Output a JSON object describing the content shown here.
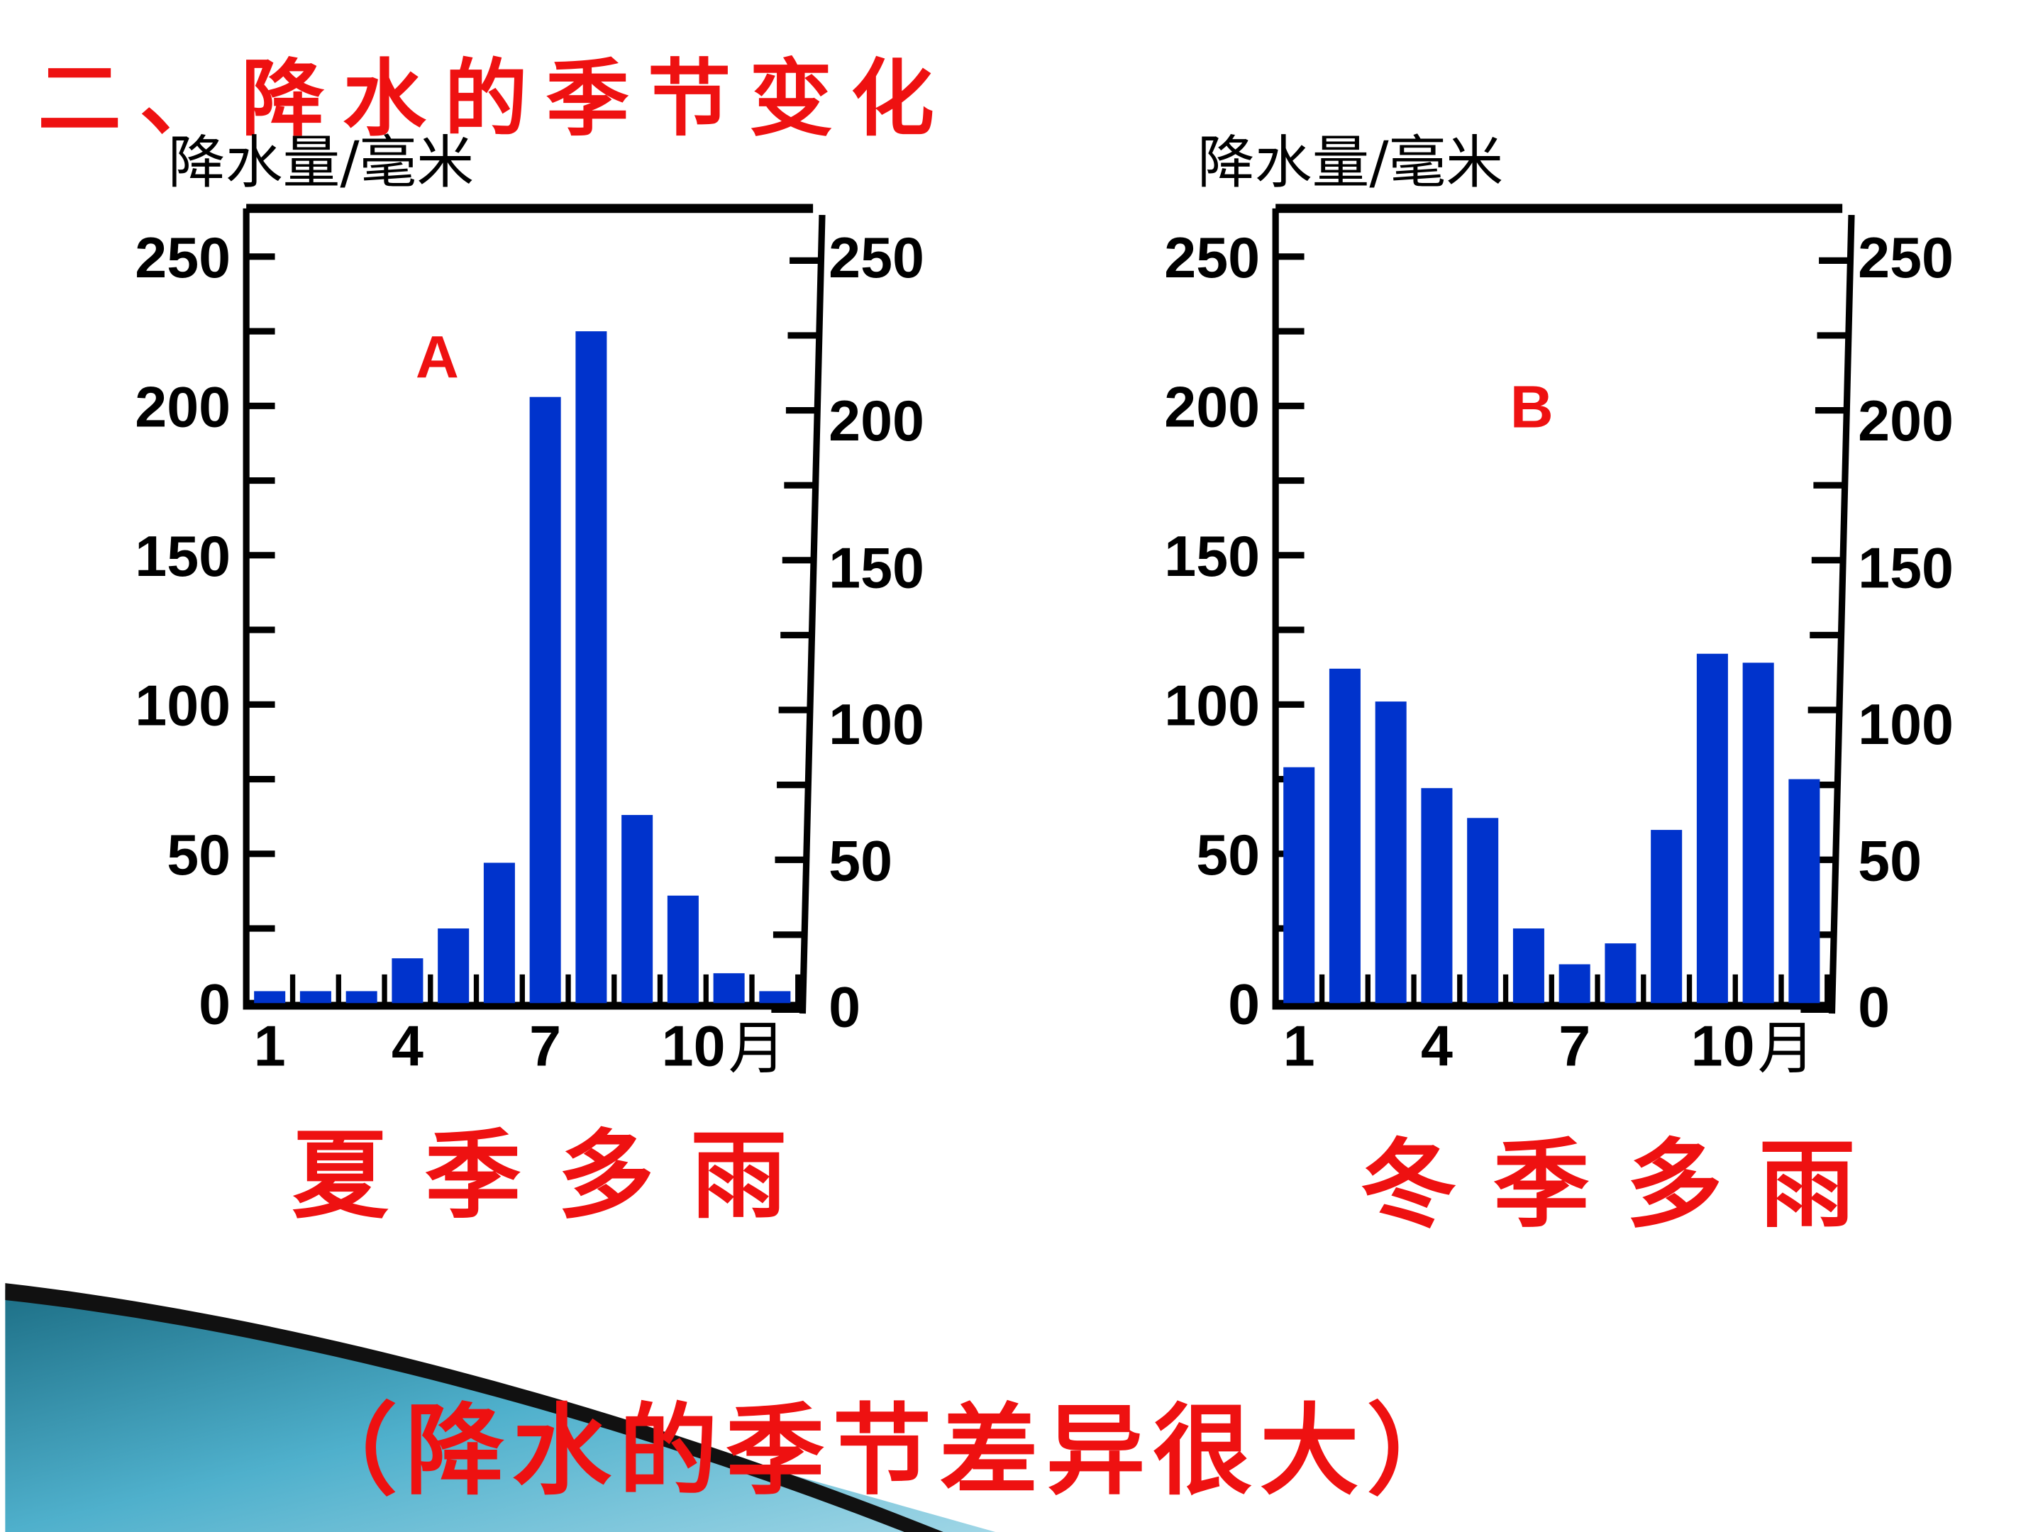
{
  "title": "二、降水的季节变化",
  "subtitle_bottom": "（降水的季节差异很大）",
  "colors": {
    "bar": "#0033cc",
    "accent_text": "#ee1111",
    "axis": "#000000"
  },
  "chart_data": [
    {
      "type": "bar",
      "label": "A",
      "ylabel": "降水量/毫米",
      "xlabel": "月",
      "x_ticks": [
        "1",
        "4",
        "7",
        "10"
      ],
      "y_ticks": [
        "0",
        "50",
        "100",
        "150",
        "200",
        "250"
      ],
      "ylim": [
        0,
        250
      ],
      "categories": [
        1,
        2,
        3,
        4,
        5,
        6,
        7,
        8,
        9,
        10,
        11,
        12
      ],
      "values": [
        4,
        4,
        4,
        15,
        25,
        47,
        203,
        225,
        63,
        36,
        10,
        4
      ],
      "caption": "夏季多雨"
    },
    {
      "type": "bar",
      "label": "B",
      "ylabel": "降水量/毫米",
      "xlabel": "月",
      "x_ticks": [
        "1",
        "4",
        "7",
        "10"
      ],
      "y_ticks": [
        "0",
        "50",
        "100",
        "150",
        "200",
        "250"
      ],
      "ylim": [
        0,
        250
      ],
      "categories": [
        1,
        2,
        3,
        4,
        5,
        6,
        7,
        8,
        9,
        10,
        11,
        12
      ],
      "values": [
        79,
        112,
        101,
        72,
        62,
        25,
        13,
        20,
        58,
        117,
        114,
        75
      ],
      "caption": "冬季多雨"
    }
  ]
}
